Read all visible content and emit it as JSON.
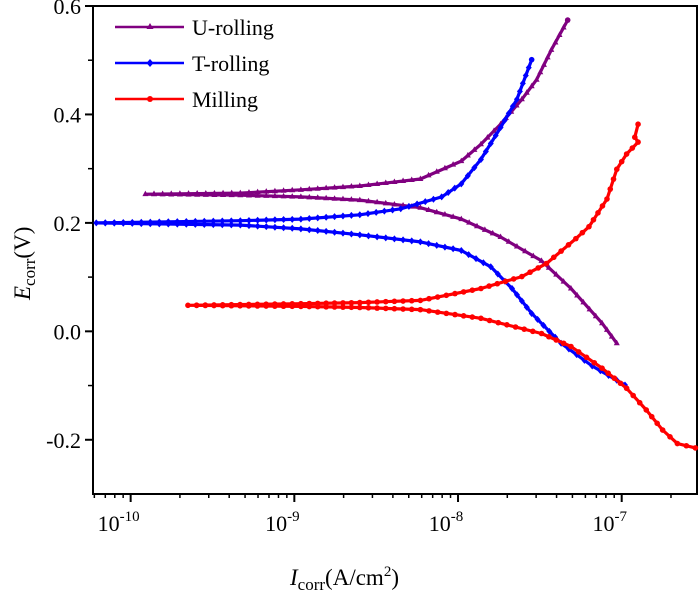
{
  "chart_data": {
    "type": "line",
    "title": "",
    "xlabel": {
      "main": "I",
      "sub": "corr",
      "rest": "(A/cm",
      "sup": "2",
      "end": ")"
    },
    "ylabel": {
      "main": "E",
      "sub": "corr",
      "rest": "(V)"
    },
    "x_scale": "log",
    "xlim_log10": [
      -10.23,
      -6.54
    ],
    "ylim": [
      -0.3,
      0.6
    ],
    "x_ticks": [
      {
        "log10": -10,
        "base": "10",
        "exp": "-10"
      },
      {
        "log10": -9,
        "base": "10",
        "exp": "-9"
      },
      {
        "log10": -8,
        "base": "10",
        "exp": "-8"
      },
      {
        "log10": -7,
        "base": "10",
        "exp": "-7"
      }
    ],
    "y_ticks": [
      {
        "value": 0.6,
        "label": "0.6"
      },
      {
        "value": 0.4,
        "label": "0.4"
      },
      {
        "value": 0.2,
        "label": "0.2"
      },
      {
        "value": 0.0,
        "label": "0.0"
      },
      {
        "value": -0.2,
        "label": "-0.2"
      }
    ],
    "y_minor_ticks": [
      0.5,
      0.3,
      0.1,
      -0.1
    ],
    "grid": false,
    "legend_position": "top-left",
    "series": [
      {
        "name": "U-rolling",
        "color": "#800080",
        "marker": "triangle",
        "points_log10I_E": [
          [
            -7.03,
            -0.022
          ],
          [
            -7.12,
            0.015
          ],
          [
            -7.31,
            0.079
          ],
          [
            -7.49,
            0.13
          ],
          [
            -7.74,
            0.174
          ],
          [
            -7.98,
            0.207
          ],
          [
            -8.23,
            0.228
          ],
          [
            -8.6,
            0.242
          ],
          [
            -8.96,
            0.248
          ],
          [
            -9.33,
            0.251
          ],
          [
            -9.91,
            0.253
          ],
          [
            -9.33,
            0.255
          ],
          [
            -8.96,
            0.261
          ],
          [
            -8.6,
            0.268
          ],
          [
            -8.23,
            0.281
          ],
          [
            -7.98,
            0.314
          ],
          [
            -7.86,
            0.345
          ],
          [
            -7.74,
            0.382
          ],
          [
            -7.61,
            0.428
          ],
          [
            -7.52,
            0.464
          ],
          [
            -7.43,
            0.519
          ],
          [
            -7.33,
            0.574
          ]
        ]
      },
      {
        "name": "T-rolling",
        "color": "#0000ff",
        "marker": "diamond",
        "points_log10I_E": [
          [
            -6.98,
            -0.099
          ],
          [
            -7.18,
            -0.064
          ],
          [
            -7.37,
            -0.022
          ],
          [
            -7.55,
            0.033
          ],
          [
            -7.67,
            0.079
          ],
          [
            -7.8,
            0.119
          ],
          [
            -7.98,
            0.149
          ],
          [
            -8.23,
            0.165
          ],
          [
            -8.6,
            0.178
          ],
          [
            -8.96,
            0.189
          ],
          [
            -9.33,
            0.196
          ],
          [
            -10.21,
            0.2
          ],
          [
            -9.33,
            0.204
          ],
          [
            -8.96,
            0.207
          ],
          [
            -8.6,
            0.215
          ],
          [
            -8.35,
            0.226
          ],
          [
            -8.1,
            0.248
          ],
          [
            -7.98,
            0.272
          ],
          [
            -7.86,
            0.317
          ],
          [
            -7.74,
            0.376
          ],
          [
            -7.64,
            0.428
          ],
          [
            -7.55,
            0.501
          ]
        ]
      },
      {
        "name": "Milling",
        "color": "#ff0000",
        "marker": "circle",
        "points_log10I_E": [
          [
            -6.55,
            -0.215
          ],
          [
            -6.66,
            -0.207
          ],
          [
            -6.75,
            -0.182
          ],
          [
            -6.85,
            -0.145
          ],
          [
            -6.97,
            -0.105
          ],
          [
            -7.12,
            -0.068
          ],
          [
            -7.31,
            -0.028
          ],
          [
            -7.49,
            -0.004
          ],
          [
            -7.86,
            0.024
          ],
          [
            -8.23,
            0.04
          ],
          [
            -8.6,
            0.044
          ],
          [
            -8.96,
            0.046
          ],
          [
            -9.65,
            0.048
          ],
          [
            -8.96,
            0.051
          ],
          [
            -8.6,
            0.053
          ],
          [
            -8.23,
            0.057
          ],
          [
            -7.86,
            0.079
          ],
          [
            -7.61,
            0.101
          ],
          [
            -7.46,
            0.125
          ],
          [
            -7.28,
            0.171
          ],
          [
            -7.2,
            0.193
          ],
          [
            -7.09,
            0.244
          ],
          [
            -7.03,
            0.299
          ],
          [
            -6.97,
            0.327
          ],
          [
            -6.9,
            0.349
          ],
          [
            -6.92,
            0.358
          ],
          [
            -6.9,
            0.382
          ]
        ]
      }
    ]
  }
}
